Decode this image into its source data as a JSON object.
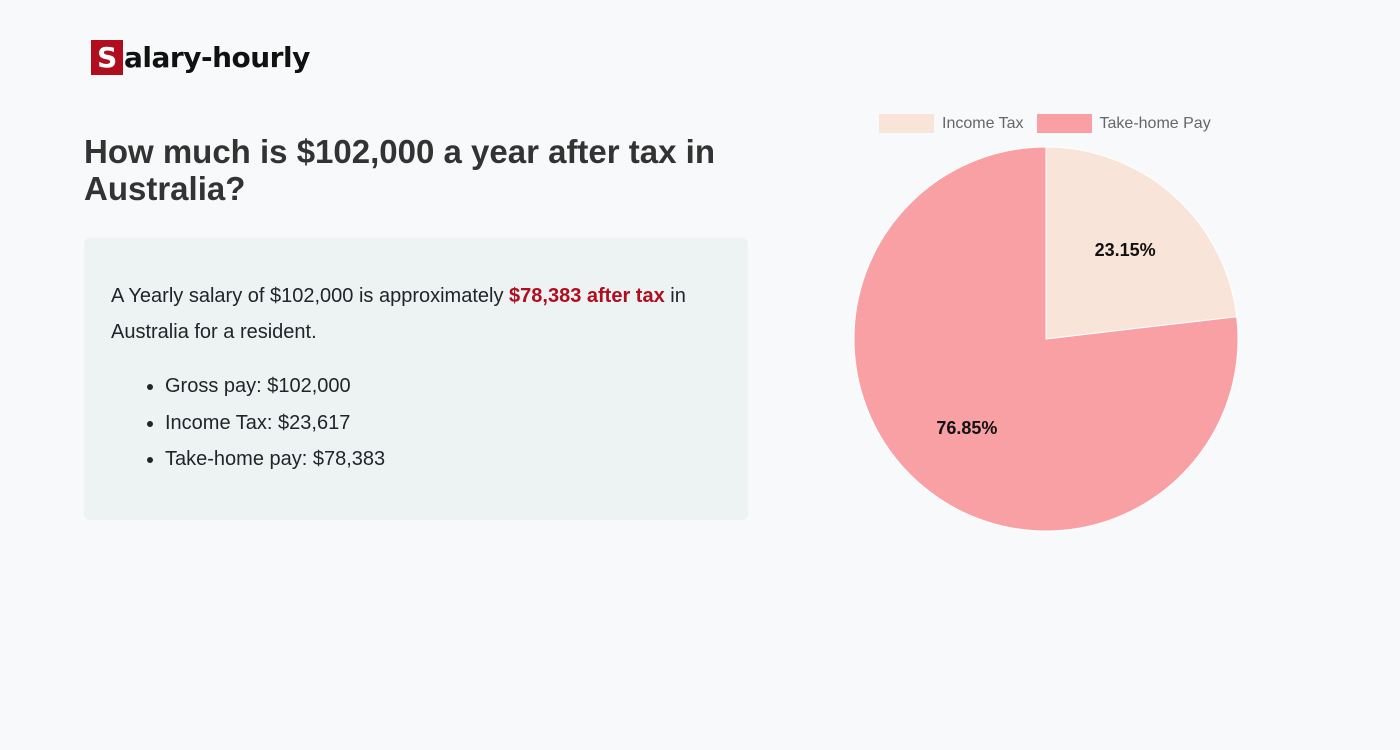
{
  "logo": {
    "letter": "S",
    "rest": "alary-hourly"
  },
  "title": "How much is $102,000 a year after tax in Australia?",
  "summary": {
    "before": "A Yearly salary of $102,000 is approximately ",
    "highlight": "$78,383 after tax",
    "after": " in Australia for a resident."
  },
  "items": [
    {
      "label": "Gross pay: $102,000"
    },
    {
      "label": "Income Tax: $23,617"
    },
    {
      "label": "Take-home pay: $78,383"
    }
  ],
  "chart_data": {
    "type": "pie",
    "legend_position": "top",
    "categories": [
      "Income Tax",
      "Take-home Pay"
    ],
    "values": [
      23.15,
      76.85
    ],
    "labels": [
      "23.15%",
      "76.85%"
    ],
    "colors": [
      "#f8e4d9",
      "#f9a0a5"
    ]
  }
}
